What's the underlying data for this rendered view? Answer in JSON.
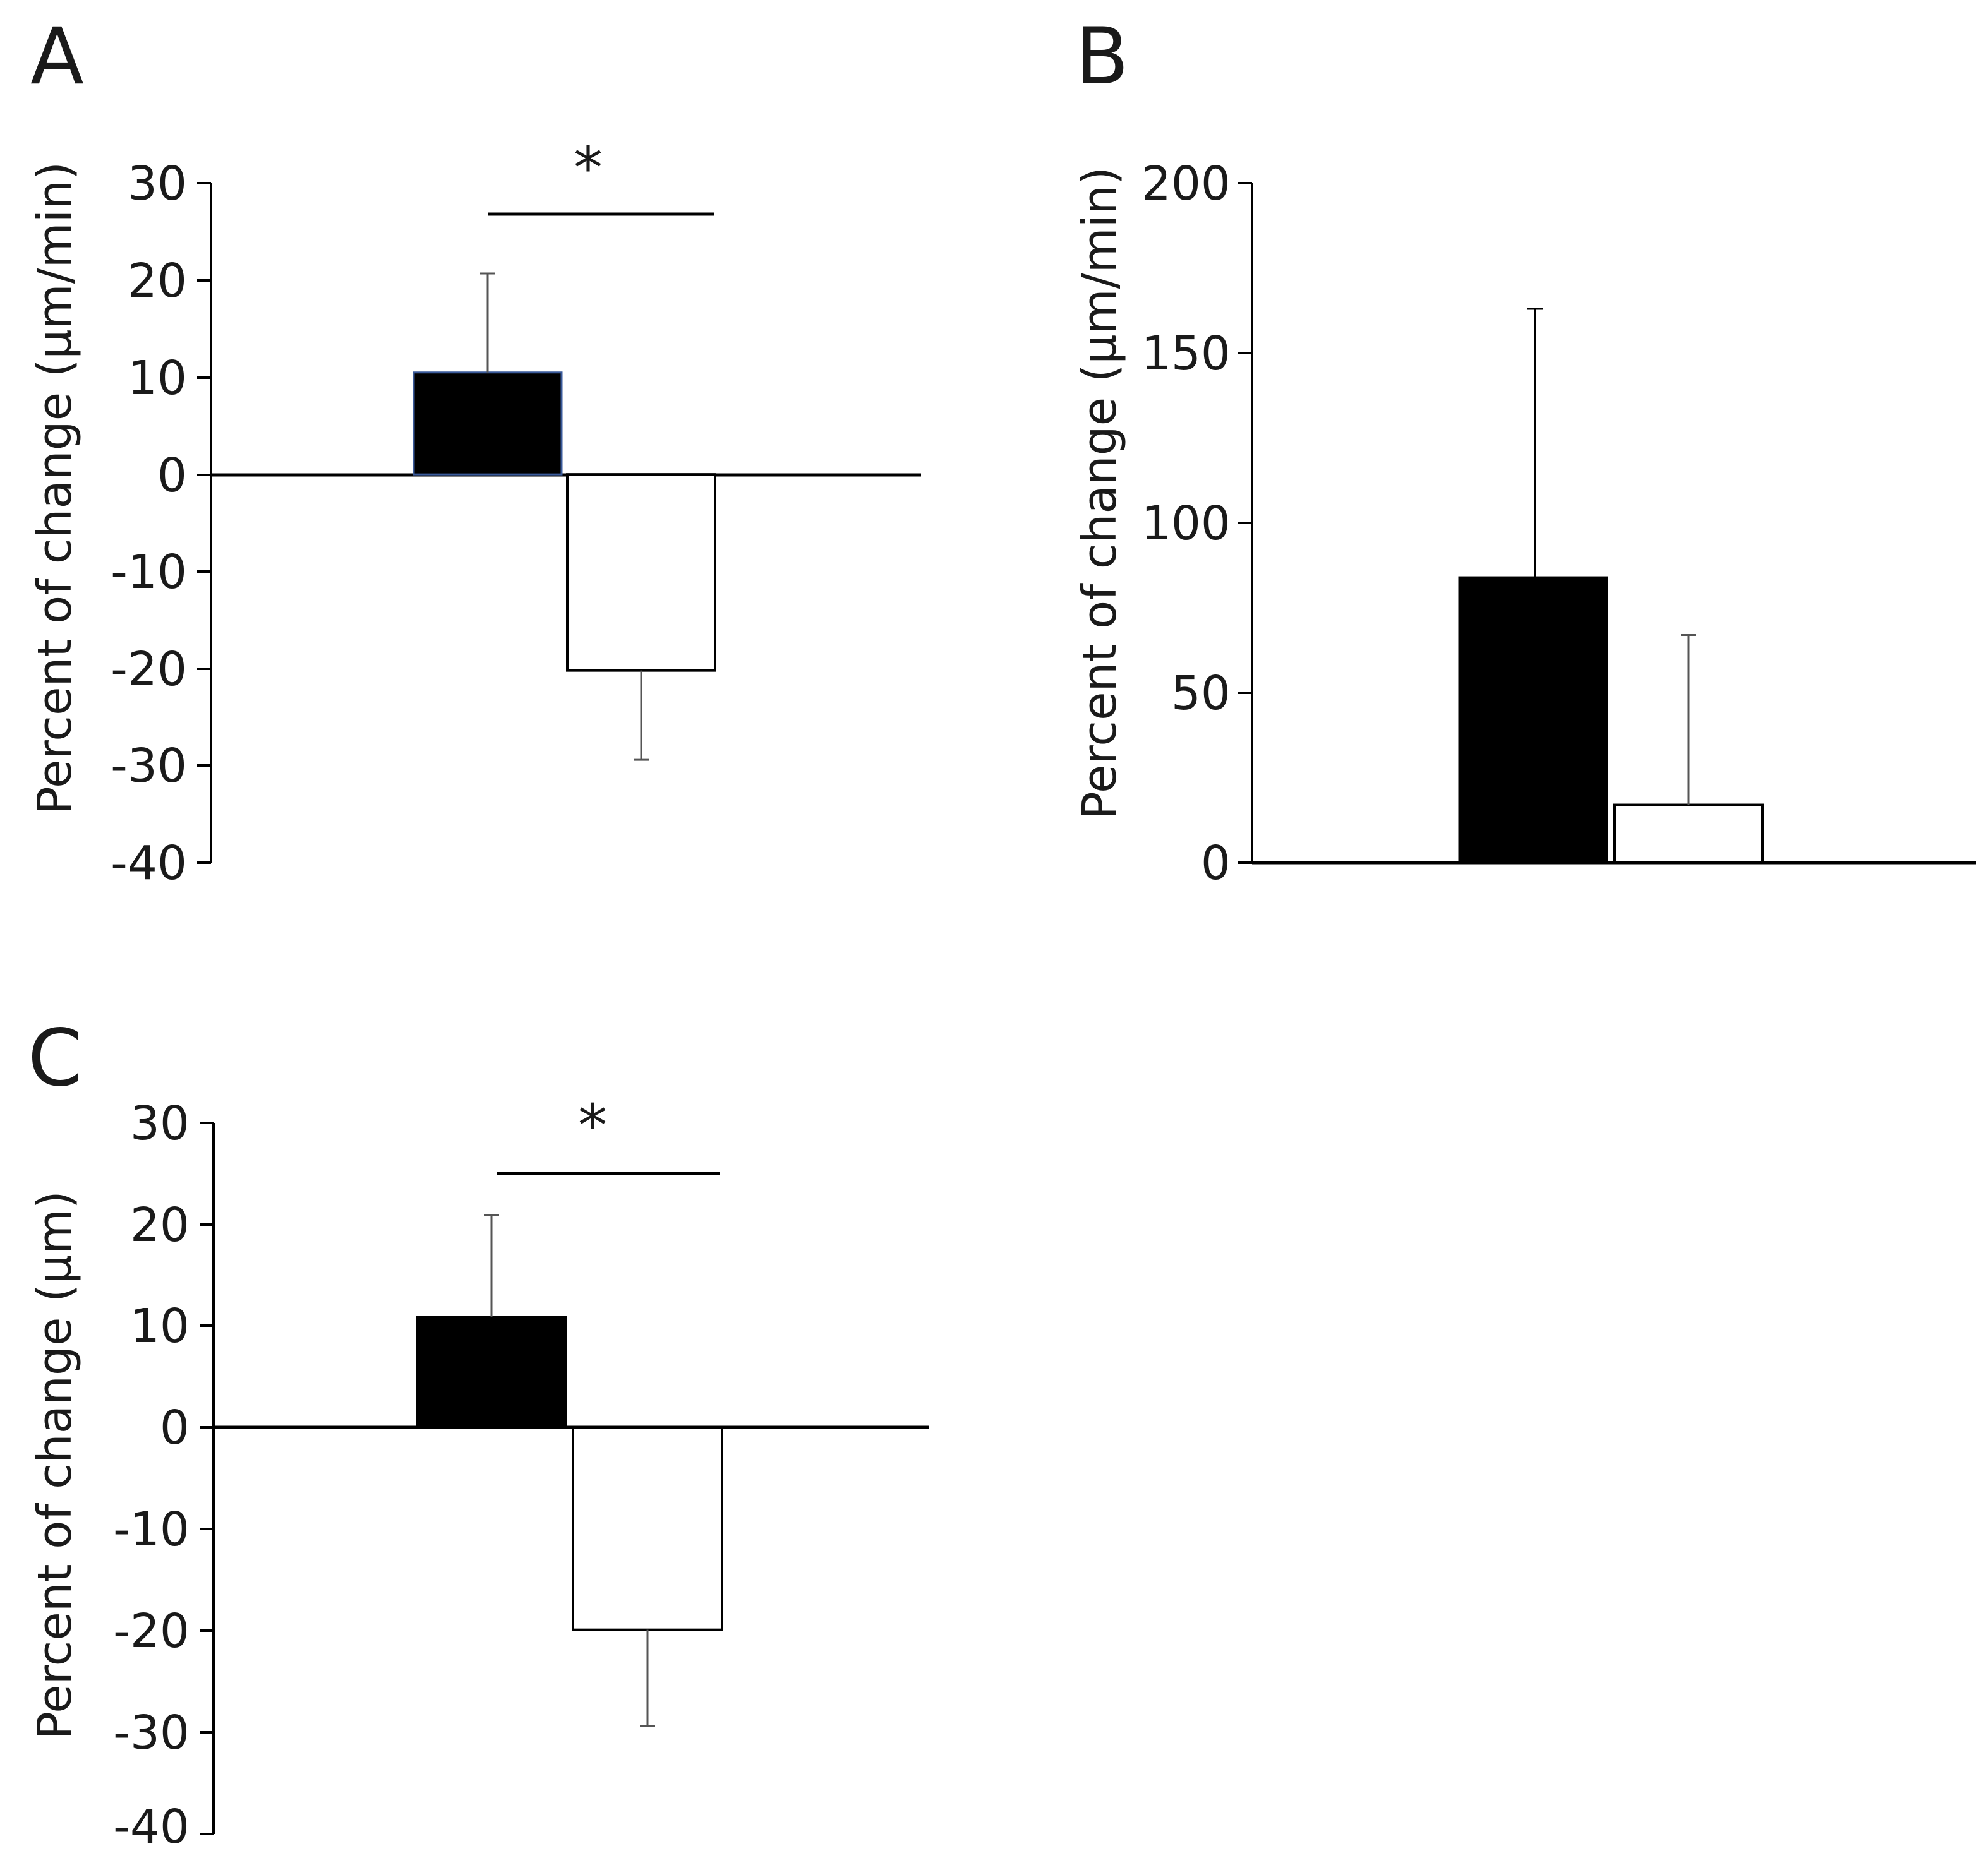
{
  "chart_data": [
    {
      "panel": "A",
      "type": "bar",
      "ylabel": "Percent of change (μm/min)",
      "ylim": [
        -40,
        30
      ],
      "yticks": [
        30,
        20,
        10,
        0,
        -10,
        -20,
        -30,
        -40
      ],
      "ytick_labels": [
        "30",
        "20",
        "10",
        "0",
        "-10",
        "-20",
        "-30",
        "-40"
      ],
      "series": [
        {
          "fill": "#000000",
          "value": 10.5,
          "error": 10.2
        },
        {
          "fill": "#ffffff",
          "value": -20.2,
          "error": 9.2
        }
      ],
      "significance": {
        "label": "*"
      }
    },
    {
      "panel": "B",
      "type": "bar",
      "ylabel": "Percent of change (μm/min)",
      "ylim": [
        0,
        200
      ],
      "yticks": [
        200,
        150,
        100,
        50,
        0
      ],
      "ytick_labels": [
        "200",
        "150",
        "100",
        "50",
        "0"
      ],
      "series": [
        {
          "fill": "#000000",
          "value": 84,
          "error": 79
        },
        {
          "fill": "#ffffff",
          "value": 17,
          "error": 50
        }
      ]
    },
    {
      "panel": "C",
      "type": "bar",
      "ylabel": "Percent of change (μm)",
      "ylim": [
        -40,
        30
      ],
      "yticks": [
        30,
        20,
        10,
        0,
        -10,
        -20,
        -30,
        -40
      ],
      "ytick_labels": [
        "30",
        "20",
        "10",
        "0",
        "-10",
        "-20",
        "-30",
        "-40"
      ],
      "series": [
        {
          "fill": "#000000",
          "value": 10.9,
          "error": 10
        },
        {
          "fill": "#ffffff",
          "value": -19.9,
          "error": 9.5
        }
      ],
      "significance": {
        "label": "*"
      }
    }
  ]
}
